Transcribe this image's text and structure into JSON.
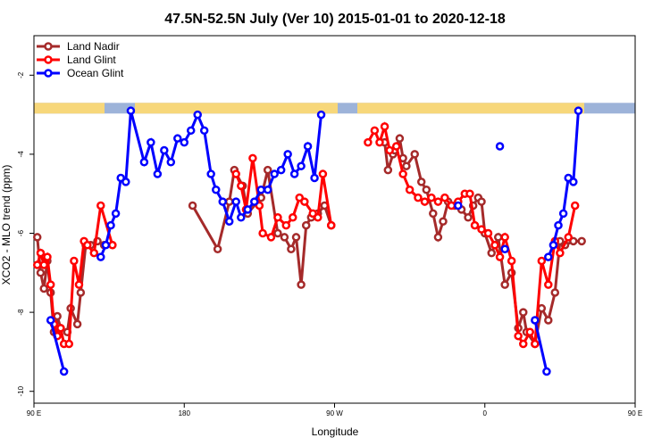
{
  "chart_data": {
    "type": "line",
    "title": "47.5N-52.5N July (Ver 10)   2015-01-01 to 2020-12-18",
    "xlabel": "Longitude",
    "ylabel": "XCO2 - MLO trend (ppm)",
    "xlim": [
      90,
      450
    ],
    "ylim": [
      -10.3,
      -1.0
    ],
    "x_ticks": [
      {
        "value": 90,
        "label": "90 E"
      },
      {
        "value": 180,
        "label": "180"
      },
      {
        "value": 270,
        "label": "90 W"
      },
      {
        "value": 360,
        "label": "0"
      },
      {
        "value": 450,
        "label": "90 E"
      },
      {
        "value": 540,
        "label": "180"
      }
    ],
    "y_ticks": [
      {
        "value": -2,
        "label": "-2"
      },
      {
        "value": -4,
        "label": "-4"
      },
      {
        "value": -6,
        "label": "-6"
      },
      {
        "value": -8,
        "label": "-8"
      },
      {
        "value": -10,
        "label": "-10"
      }
    ],
    "grid": false,
    "legend_position": "top-left",
    "land_ocean_band": {
      "y_top": -2.7,
      "y_bottom": -2.97,
      "land_color": "#F7D77A",
      "ocean_color": "#9DB3D9"
    },
    "series": [
      {
        "name": "Land Nadir",
        "color": "#A52A2A",
        "segments": [
          [
            [
              92,
              -6.1
            ],
            [
              94,
              -7.0
            ],
            [
              96,
              -7.4
            ],
            [
              98,
              -6.7
            ],
            [
              100,
              -7.5
            ],
            [
              102,
              -8.5
            ],
            [
              104,
              -8.1
            ],
            [
              106,
              -8.4
            ],
            [
              110,
              -8.5
            ],
            [
              112,
              -7.9
            ],
            [
              116,
              -8.3
            ],
            [
              118,
              -7.5
            ],
            [
              121,
              -6.3
            ],
            [
              124,
              -6.3
            ],
            [
              128,
              -6.2
            ],
            [
              132,
              -6.3
            ]
          ],
          [
            [
              185,
              -5.3
            ],
            [
              200,
              -6.4
            ],
            [
              207,
              -5.2
            ],
            [
              210,
              -4.4
            ],
            [
              215,
              -4.8
            ],
            [
              218,
              -5.5
            ],
            [
              226,
              -5.1
            ],
            [
              230,
              -4.4
            ],
            [
              236,
              -6.0
            ],
            [
              240,
              -6.1
            ],
            [
              244,
              -6.4
            ],
            [
              247,
              -6.1
            ],
            [
              250,
              -7.3
            ],
            [
              253,
              -5.8
            ],
            [
              256,
              -5.6
            ],
            [
              260,
              -5.5
            ],
            [
              264,
              -5.3
            ],
            [
              268,
              -5.8
            ]
          ],
          [
            [
              300,
              -3.7
            ],
            [
              302,
              -4.4
            ],
            [
              305,
              -4.0
            ],
            [
              306,
              -3.9
            ],
            [
              309,
              -3.6
            ],
            [
              311,
              -4.1
            ],
            [
              313,
              -4.3
            ],
            [
              318,
              -4.0
            ],
            [
              322,
              -4.7
            ],
            [
              325,
              -4.9
            ],
            [
              329,
              -5.5
            ],
            [
              332,
              -6.1
            ],
            [
              335,
              -5.7
            ],
            [
              338,
              -5.2
            ],
            [
              342,
              -5.3
            ],
            [
              346,
              -5.4
            ],
            [
              350,
              -5.6
            ],
            [
              353,
              -5.3
            ],
            [
              356,
              -5.1
            ],
            [
              358,
              -5.2
            ],
            [
              360,
              -6.0
            ],
            [
              364,
              -6.5
            ],
            [
              368,
              -6.1
            ],
            [
              372,
              -7.3
            ],
            [
              376,
              -7.0
            ],
            [
              380,
              -8.4
            ],
            [
              383,
              -8.0
            ],
            [
              385,
              -8.5
            ],
            [
              390,
              -8.8
            ],
            [
              394,
              -7.9
            ],
            [
              398,
              -8.2
            ],
            [
              402,
              -7.5
            ],
            [
              405,
              -6.2
            ],
            [
              408,
              -6.3
            ],
            [
              413,
              -6.2
            ],
            [
              418,
              -6.2
            ]
          ]
        ]
      },
      {
        "name": "Land Glint",
        "color": "#FF0000",
        "segments": [
          [
            [
              92,
              -6.8
            ],
            [
              94,
              -6.5
            ],
            [
              96,
              -6.8
            ],
            [
              98,
              -6.6
            ],
            [
              100,
              -7.3
            ],
            [
              102,
              -8.3
            ],
            [
              104,
              -8.6
            ],
            [
              106,
              -8.4
            ],
            [
              108,
              -8.8
            ],
            [
              111,
              -8.8
            ],
            [
              114,
              -6.7
            ],
            [
              117,
              -7.3
            ],
            [
              120,
              -6.2
            ],
            [
              122,
              -6.3
            ],
            [
              126,
              -6.5
            ],
            [
              130,
              -5.3
            ],
            [
              137,
              -6.3
            ]
          ],
          [
            [
              211,
              -4.5
            ],
            [
              214,
              -4.8
            ],
            [
              217,
              -5.4
            ],
            [
              221,
              -4.1
            ],
            [
              225,
              -5.3
            ],
            [
              227,
              -6.0
            ],
            [
              232,
              -6.1
            ],
            [
              236,
              -5.6
            ],
            [
              241,
              -5.8
            ],
            [
              245,
              -5.6
            ],
            [
              249,
              -5.1
            ],
            [
              252,
              -5.2
            ],
            [
              257,
              -5.5
            ],
            [
              260,
              -5.6
            ],
            [
              263,
              -4.5
            ],
            [
              268,
              -5.8
            ]
          ],
          [
            [
              290,
              -3.7
            ],
            [
              294,
              -3.4
            ],
            [
              297,
              -3.7
            ],
            [
              300,
              -3.3
            ],
            [
              303,
              -3.9
            ],
            [
              307,
              -3.8
            ],
            [
              311,
              -4.5
            ],
            [
              315,
              -4.9
            ],
            [
              320,
              -5.1
            ],
            [
              324,
              -5.2
            ],
            [
              328,
              -5.1
            ],
            [
              332,
              -5.2
            ],
            [
              336,
              -5.1
            ],
            [
              340,
              -5.3
            ],
            [
              344,
              -5.2
            ],
            [
              348,
              -5.0
            ],
            [
              351,
              -5.0
            ],
            [
              354,
              -5.8
            ],
            [
              358,
              -5.9
            ],
            [
              362,
              -6.0
            ],
            [
              366,
              -6.3
            ],
            [
              369,
              -6.6
            ],
            [
              372,
              -6.1
            ],
            [
              376,
              -6.7
            ],
            [
              380,
              -8.6
            ],
            [
              383,
              -8.8
            ],
            [
              387,
              -8.5
            ],
            [
              390,
              -8.8
            ],
            [
              394,
              -6.7
            ],
            [
              398,
              -7.3
            ],
            [
              402,
              -6.2
            ],
            [
              405,
              -6.5
            ],
            [
              410,
              -6.1
            ],
            [
              414,
              -5.3
            ]
          ]
        ]
      },
      {
        "name": "Ocean Glint",
        "color": "#0000FF",
        "segments": [
          [
            [
              100,
              -8.2
            ],
            [
              108,
              -9.5
            ]
          ],
          [
            [
              130,
              -6.6
            ],
            [
              133,
              -6.3
            ],
            [
              136,
              -5.8
            ],
            [
              139,
              -5.5
            ],
            [
              142,
              -4.6
            ],
            [
              145,
              -4.7
            ],
            [
              148,
              -2.9
            ],
            [
              156,
              -4.2
            ],
            [
              160,
              -3.7
            ],
            [
              164,
              -4.5
            ],
            [
              168,
              -3.9
            ],
            [
              172,
              -4.2
            ],
            [
              176,
              -3.6
            ],
            [
              180,
              -3.7
            ],
            [
              184,
              -3.4
            ],
            [
              188,
              -3.0
            ],
            [
              192,
              -3.4
            ],
            [
              196,
              -4.5
            ],
            [
              199,
              -4.9
            ],
            [
              203,
              -5.2
            ],
            [
              207,
              -5.7
            ],
            [
              211,
              -5.2
            ],
            [
              214,
              -5.6
            ],
            [
              218,
              -5.4
            ],
            [
              222,
              -5.2
            ],
            [
              226,
              -4.9
            ],
            [
              230,
              -4.9
            ],
            [
              234,
              -4.5
            ],
            [
              238,
              -4.4
            ],
            [
              242,
              -4.0
            ],
            [
              246,
              -4.5
            ],
            [
              250,
              -4.3
            ],
            [
              254,
              -3.8
            ],
            [
              258,
              -4.6
            ],
            [
              262,
              -3.0
            ]
          ],
          [
            [
              344,
              -5.3
            ]
          ],
          [
            [
              369,
              -3.8
            ]
          ],
          [
            [
              372,
              -6.4
            ]
          ],
          [
            [
              390,
              -8.2
            ],
            [
              397,
              -9.5
            ]
          ],
          [
            [
              398,
              -6.6
            ],
            [
              401,
              -6.3
            ],
            [
              404,
              -5.8
            ],
            [
              407,
              -5.5
            ],
            [
              410,
              -4.6
            ],
            [
              413,
              -4.7
            ],
            [
              416,
              -2.9
            ]
          ]
        ]
      }
    ]
  }
}
